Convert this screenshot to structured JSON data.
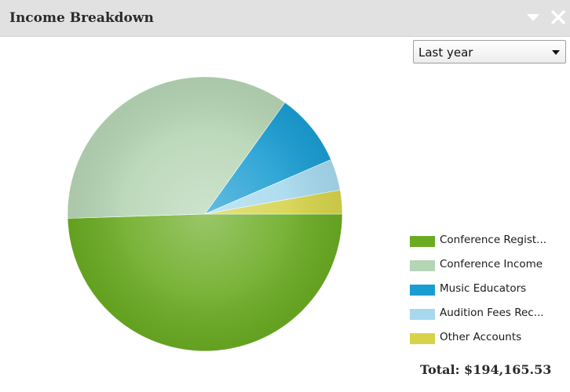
{
  "panel": {
    "title": "Income Breakdown"
  },
  "filter": {
    "selected": "Last year"
  },
  "header_icons": {
    "collapse": "chevron-down-icon",
    "close": "close-icon"
  },
  "chart_data": {
    "type": "pie",
    "slices": [
      {
        "name": "Conference Regist...",
        "value": 49.5,
        "color": "#6aab22"
      },
      {
        "name": "Conference Income",
        "value": 35.4,
        "color": "#b5d5b4"
      },
      {
        "name": "Music Educators",
        "value": 8.6,
        "color": "#1a9dd2"
      },
      {
        "name": "Audition Fees Rec...",
        "value": 3.7,
        "color": "#a6d9ee"
      },
      {
        "name": "Other Accounts",
        "value": 2.8,
        "color": "#d6d34b"
      }
    ],
    "start_angle_deg": 0,
    "direction": "clockwise",
    "legend_position": "bottom-right",
    "total_label": "Total: $194,165.53"
  }
}
